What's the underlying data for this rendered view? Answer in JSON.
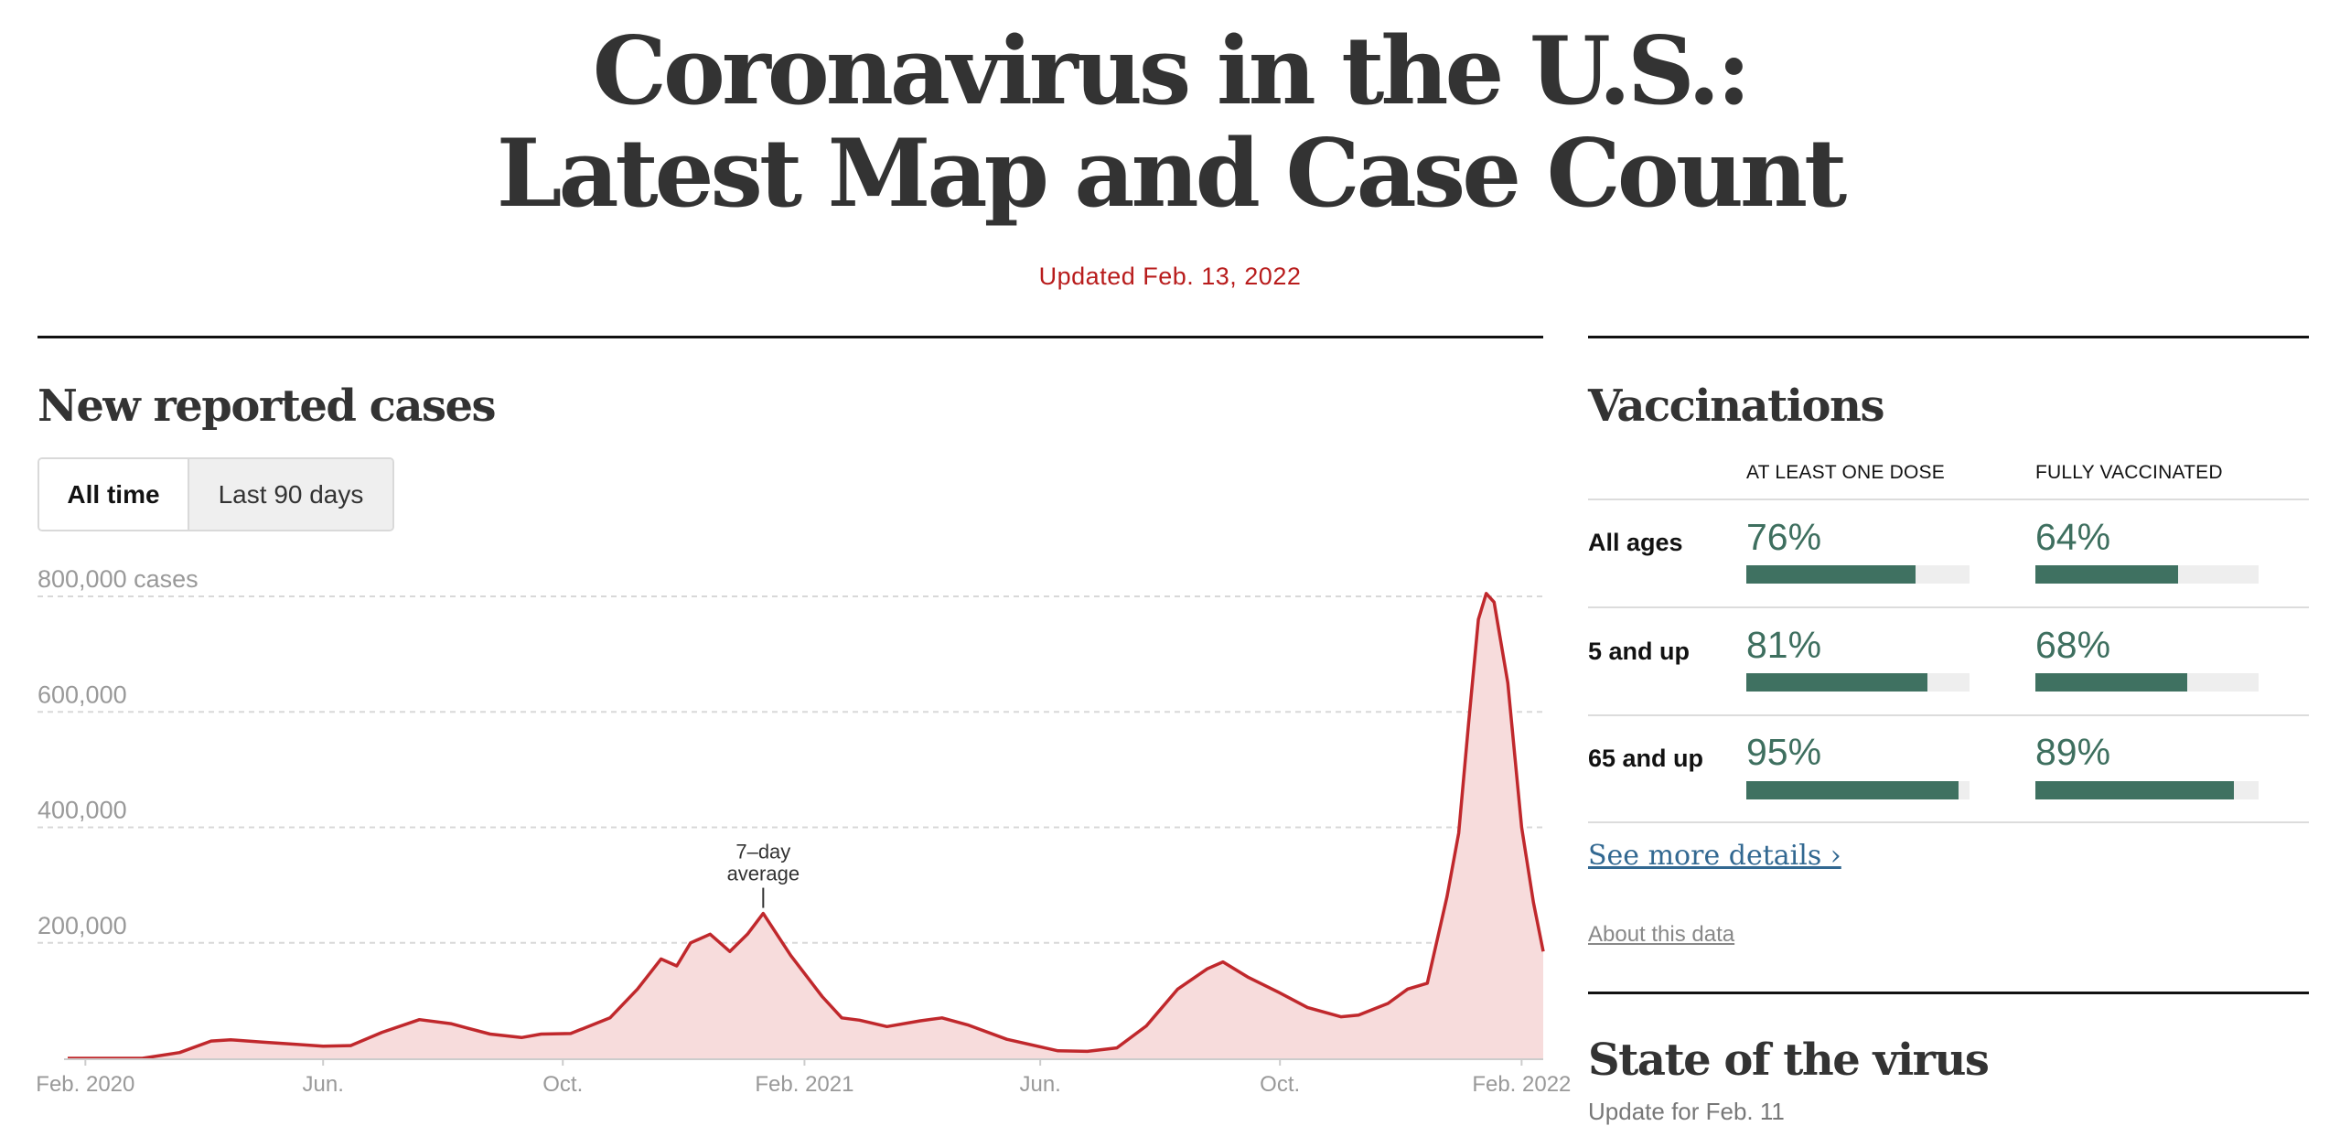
{
  "headline": {
    "line1": "Coronavirus in the U.S.:",
    "line2": "Latest Map and Case Count"
  },
  "updated": "Updated Feb. 13, 2022",
  "cases": {
    "title": "New reported cases",
    "toggle": {
      "active": "All time",
      "inactive": "Last 90 days"
    }
  },
  "chart_data": {
    "type": "area",
    "title": "New reported cases",
    "ylabel": "800,000 cases",
    "ylim": [
      0,
      800000
    ],
    "yticks": [
      {
        "value": 800000,
        "label": "800,000 cases"
      },
      {
        "value": 600000,
        "label": "600,000"
      },
      {
        "value": 400000,
        "label": "400,000"
      },
      {
        "value": 200000,
        "label": "200,000"
      }
    ],
    "xticks": [
      {
        "date": "2020-02-01",
        "label": "Feb. 2020"
      },
      {
        "date": "2020-06-01",
        "label": "Jun."
      },
      {
        "date": "2020-10-01",
        "label": "Oct."
      },
      {
        "date": "2021-02-01",
        "label": "Feb. 2021"
      },
      {
        "date": "2021-06-01",
        "label": "Jun."
      },
      {
        "date": "2021-10-01",
        "label": "Oct."
      },
      {
        "date": "2022-02-01",
        "label": "Feb. 2022"
      }
    ],
    "annotation": {
      "text_line1": "7–day",
      "text_line2": "average",
      "date": "2021-01-11"
    },
    "series": [
      {
        "name": "7–day average",
        "color": "#c0282c",
        "fill": "#f7dcdc",
        "points": [
          [
            "2020-01-23",
            0
          ],
          [
            "2020-03-01",
            0
          ],
          [
            "2020-03-20",
            10000
          ],
          [
            "2020-04-05",
            30000
          ],
          [
            "2020-04-15",
            32000
          ],
          [
            "2020-05-01",
            28000
          ],
          [
            "2020-05-15",
            25000
          ],
          [
            "2020-06-01",
            21000
          ],
          [
            "2020-06-15",
            22000
          ],
          [
            "2020-07-01",
            45000
          ],
          [
            "2020-07-20",
            67000
          ],
          [
            "2020-08-05",
            60000
          ],
          [
            "2020-08-25",
            42000
          ],
          [
            "2020-09-10",
            36000
          ],
          [
            "2020-09-20",
            42000
          ],
          [
            "2020-10-05",
            43000
          ],
          [
            "2020-10-25",
            70000
          ],
          [
            "2020-11-08",
            120000
          ],
          [
            "2020-11-20",
            172000
          ],
          [
            "2020-11-28",
            160000
          ],
          [
            "2020-12-05",
            200000
          ],
          [
            "2020-12-15",
            215000
          ],
          [
            "2020-12-25",
            185000
          ],
          [
            "2021-01-03",
            215000
          ],
          [
            "2021-01-11",
            251000
          ],
          [
            "2021-01-25",
            178000
          ],
          [
            "2021-02-10",
            107000
          ],
          [
            "2021-02-20",
            70000
          ],
          [
            "2021-03-01",
            66000
          ],
          [
            "2021-03-15",
            55000
          ],
          [
            "2021-04-01",
            65000
          ],
          [
            "2021-04-12",
            70000
          ],
          [
            "2021-04-25",
            58000
          ],
          [
            "2021-05-15",
            33000
          ],
          [
            "2021-06-10",
            13000
          ],
          [
            "2021-06-25",
            12000
          ],
          [
            "2021-07-10",
            18000
          ],
          [
            "2021-07-25",
            56000
          ],
          [
            "2021-08-10",
            120000
          ],
          [
            "2021-08-25",
            155000
          ],
          [
            "2021-09-02",
            167000
          ],
          [
            "2021-09-15",
            140000
          ],
          [
            "2021-09-30",
            115000
          ],
          [
            "2021-10-15",
            88000
          ],
          [
            "2021-11-01",
            72000
          ],
          [
            "2021-11-10",
            75000
          ],
          [
            "2021-11-25",
            95000
          ],
          [
            "2021-12-05",
            120000
          ],
          [
            "2021-12-15",
            130000
          ],
          [
            "2021-12-25",
            280000
          ],
          [
            "2021-12-31",
            390000
          ],
          [
            "2022-01-05",
            580000
          ],
          [
            "2022-01-10",
            760000
          ],
          [
            "2022-01-14",
            805000
          ],
          [
            "2022-01-18",
            790000
          ],
          [
            "2022-01-25",
            650000
          ],
          [
            "2022-02-01",
            400000
          ],
          [
            "2022-02-07",
            270000
          ],
          [
            "2022-02-12",
            185000
          ]
        ]
      }
    ]
  },
  "vaccinations": {
    "title": "Vaccinations",
    "col1": "AT LEAST ONE DOSE",
    "col2": "FULLY VACCINATED",
    "rows": [
      {
        "label": "All ages",
        "one_dose": "76%",
        "one_dose_value": 0.76,
        "fully": "64%",
        "fully_value": 0.64
      },
      {
        "label": "5 and up",
        "one_dose": "81%",
        "one_dose_value": 0.81,
        "fully": "68%",
        "fully_value": 0.68
      },
      {
        "label": "65 and up",
        "one_dose": "95%",
        "one_dose_value": 0.95,
        "fully": "89%",
        "fully_value": 0.89
      }
    ],
    "details_link": "See more details ›",
    "about_link": "About this data"
  },
  "state": {
    "title": "State of the virus",
    "update": "Update for Feb. 11"
  }
}
